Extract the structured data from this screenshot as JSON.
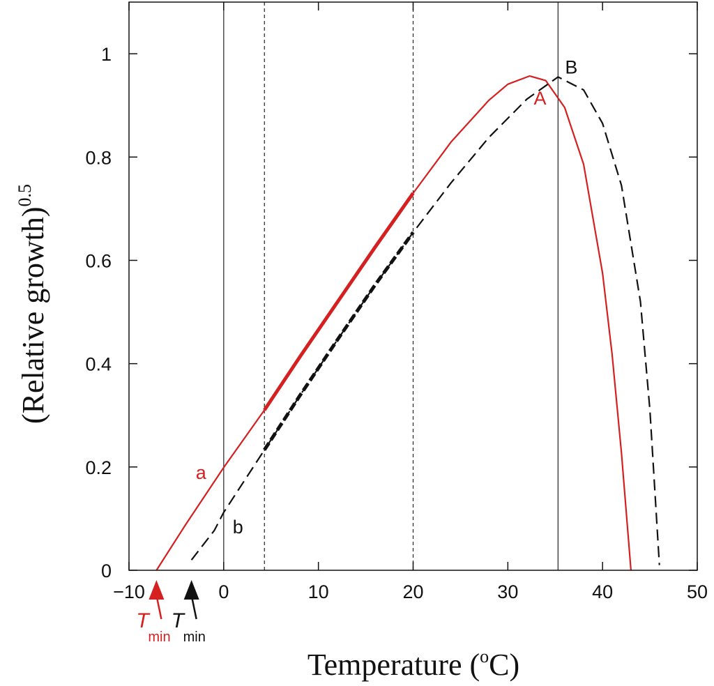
{
  "chart_data": {
    "type": "line",
    "xlabel": "Temperature (",
    "xlabel_sup": "o",
    "xlabel_tail": "C)",
    "ylabel": "(Relative growth)",
    "ylabel_sup": "0.5",
    "xlim": [
      -10,
      50
    ],
    "ylim": [
      0,
      1.1
    ],
    "x_ticks": [
      -10,
      0,
      10,
      20,
      30,
      40,
      50
    ],
    "x_tick_labels": [
      "−10",
      "0",
      "10",
      "20",
      "30",
      "40",
      "50"
    ],
    "y_ticks": [
      0,
      0.2,
      0.4,
      0.6,
      0.8,
      1
    ],
    "y_tick_labels": [
      "0",
      "0.2",
      "0.4",
      "0.6",
      "0.8",
      "1"
    ],
    "grid": false,
    "reference_lines": [
      {
        "x": 0,
        "style": "solid"
      },
      {
        "x": 4.3,
        "style": "dashed"
      },
      {
        "x": 20,
        "style": "dashed"
      },
      {
        "x": 35.3,
        "style": "solid"
      }
    ],
    "series": [
      {
        "color": "#d42020",
        "style": "solid",
        "x": [
          -7.1,
          -4,
          0,
          4.3,
          8,
          12,
          16,
          20,
          24,
          28,
          30,
          32.3,
          34,
          36,
          38,
          40,
          41,
          42,
          43
        ],
        "y": [
          0,
          0.089,
          0.199,
          0.31,
          0.412,
          0.519,
          0.626,
          0.73,
          0.829,
          0.91,
          0.941,
          0.957,
          0.948,
          0.896,
          0.786,
          0.575,
          0.419,
          0.227,
          0
        ],
        "emphasis_range": [
          4.3,
          20
        ]
      },
      {
        "color": "#111111",
        "style": "dashed",
        "x": [
          -3.4,
          -1,
          0,
          4.3,
          8,
          12,
          16,
          20,
          24,
          28,
          32,
          35.3,
          38,
          40,
          42,
          44,
          45,
          46
        ],
        "y": [
          0.02,
          0.077,
          0.112,
          0.233,
          0.337,
          0.446,
          0.553,
          0.654,
          0.75,
          0.838,
          0.912,
          0.955,
          0.93,
          0.865,
          0.745,
          0.52,
          0.31,
          0.01
        ],
        "emphasis_range": [
          4.3,
          20
        ]
      }
    ],
    "annotations": [
      {
        "text": "A",
        "x": 33.4,
        "y": 0.915,
        "color": "#d42020"
      },
      {
        "text": "B",
        "x": 36.7,
        "y": 0.975,
        "color": "#111111"
      },
      {
        "text": "a",
        "x": -2.4,
        "y": 0.19,
        "color": "#d42020"
      },
      {
        "text": "b",
        "x": 1.5,
        "y": 0.085,
        "color": "#111111"
      }
    ],
    "tmin_markers": [
      {
        "text": "T",
        "sub": "min",
        "x": -7.1,
        "color": "#d42020"
      },
      {
        "text": "T",
        "sub": "min",
        "x": -3.4,
        "color": "#111111"
      }
    ]
  }
}
